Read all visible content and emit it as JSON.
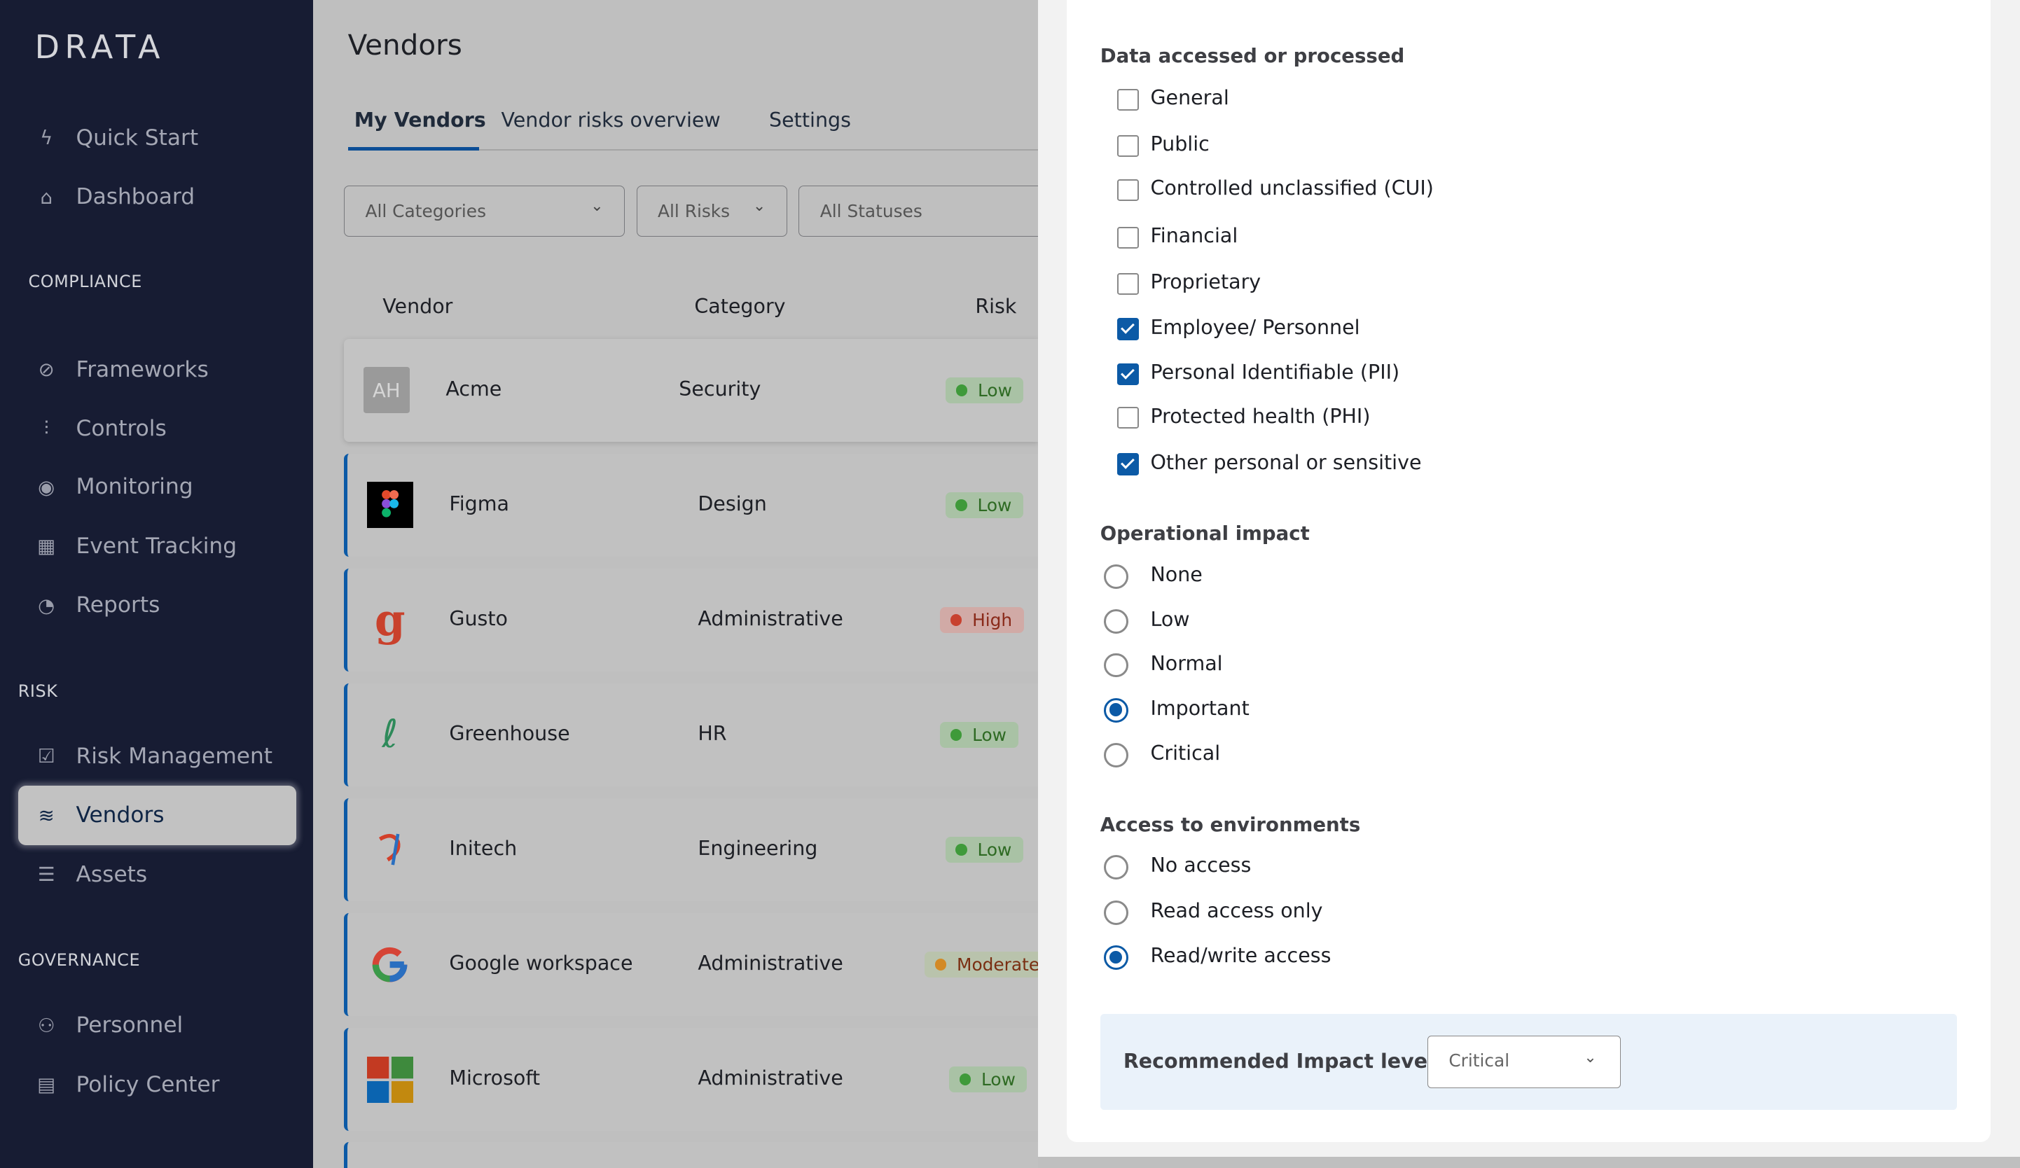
{
  "sidebar": {
    "logo": "DRATA",
    "items": [
      {
        "label": "Quick Start",
        "icon": "lightning-icon",
        "glyph": "ϟ",
        "y": 0
      },
      {
        "label": "Dashboard",
        "icon": "home-icon",
        "glyph": "⌂"
      }
    ],
    "compliance_heading": "COMPLIANCE",
    "compliance_items": [
      {
        "label": "Frameworks",
        "icon": "compass-icon",
        "glyph": "⊘"
      },
      {
        "label": "Controls",
        "icon": "sliders-icon",
        "glyph": "⫶"
      },
      {
        "label": "Monitoring",
        "icon": "broadcast-icon",
        "glyph": "◉"
      },
      {
        "label": "Event Tracking",
        "icon": "calendar-icon",
        "glyph": "▦"
      },
      {
        "label": "Reports",
        "icon": "pie-chart-icon",
        "glyph": "◔"
      }
    ],
    "risk_heading": "RISK",
    "risk_items": [
      {
        "label": "Risk Management",
        "icon": "checkbox-icon",
        "glyph": "☑"
      },
      {
        "label": "Vendors",
        "icon": "layers-icon",
        "glyph": "≋",
        "active": true
      },
      {
        "label": "Assets",
        "icon": "list-icon",
        "glyph": "☰"
      }
    ],
    "governance_heading": "GOVERNANCE",
    "governance_items": [
      {
        "label": "Personnel",
        "icon": "users-icon",
        "glyph": "⚇"
      },
      {
        "label": "Policy Center",
        "icon": "document-icon",
        "glyph": "▤"
      }
    ]
  },
  "main": {
    "title": "Vendors",
    "tabs": [
      {
        "label": "My Vendors",
        "active": true
      },
      {
        "label": "Vendor risks overview"
      },
      {
        "label": "Settings"
      }
    ],
    "filters": {
      "categories": "All Categories",
      "risks": "All Risks",
      "statuses": "All Statuses"
    },
    "columns": {
      "vendor": "Vendor",
      "category": "Category",
      "risk": "Risk"
    },
    "vendors": [
      {
        "name": "Acme",
        "category": "Security",
        "risk": "Low",
        "logo": "AH"
      },
      {
        "name": "Figma",
        "category": "Design",
        "risk": "Low",
        "logo": "figma-logo"
      },
      {
        "name": "Gusto",
        "category": "Administrative",
        "risk": "High",
        "logo": "gusto-logo"
      },
      {
        "name": "Greenhouse",
        "category": "HR",
        "risk": "Low",
        "logo": "greenhouse-logo"
      },
      {
        "name": "Initech",
        "category": "Engineering",
        "risk": "Low",
        "logo": "initech-logo"
      },
      {
        "name": "Google workspace",
        "category": "Administrative",
        "risk": "Moderate",
        "logo": "google-logo"
      },
      {
        "name": "Microsoft",
        "category": "Administrative",
        "risk": "Low",
        "logo": "microsoft-logo"
      }
    ],
    "risk_colors": {
      "Low": {
        "bg": "#a9c2a5",
        "dot": "#3f9a3a",
        "text": "#2e6a23"
      },
      "High": {
        "bg": "#d1aaa6",
        "dot": "#c8412f",
        "text": "#8a2a1a"
      },
      "Moderate": {
        "bg": "#b9c3ac",
        "dot": "#d38a25",
        "text": "#7a2f12"
      }
    }
  },
  "panel": {
    "data_heading": "Data accessed or processed",
    "data_options": [
      {
        "label": "General",
        "checked": false
      },
      {
        "label": "Public",
        "checked": false
      },
      {
        "label": "Controlled unclassified (CUI)",
        "checked": false
      },
      {
        "label": "Financial",
        "checked": false
      },
      {
        "label": "Proprietary",
        "checked": false
      },
      {
        "label": "Employee/ Personnel",
        "checked": true
      },
      {
        "label": "Personal Identifiable (PII)",
        "checked": true
      },
      {
        "label": "Protected health (PHI)",
        "checked": false
      },
      {
        "label": "Other personal or sensitive",
        "checked": true
      }
    ],
    "impact_heading": "Operational impact",
    "impact_options": [
      {
        "label": "None",
        "selected": false
      },
      {
        "label": "Low",
        "selected": false
      },
      {
        "label": "Normal",
        "selected": false
      },
      {
        "label": "Important",
        "selected": true
      },
      {
        "label": "Critical",
        "selected": false
      }
    ],
    "access_heading": "Access to environments",
    "access_options": [
      {
        "label": "No access",
        "selected": false
      },
      {
        "label": "Read access only",
        "selected": false
      },
      {
        "label": "Read/write access",
        "selected": true
      }
    ],
    "recommended_label": "Recommended Impact level",
    "recommended_value": "Critical"
  },
  "colors": {
    "sidebar_bg": "#171c33",
    "accent": "#0c5aa6",
    "recommend_bg": "#eaf2fa"
  }
}
